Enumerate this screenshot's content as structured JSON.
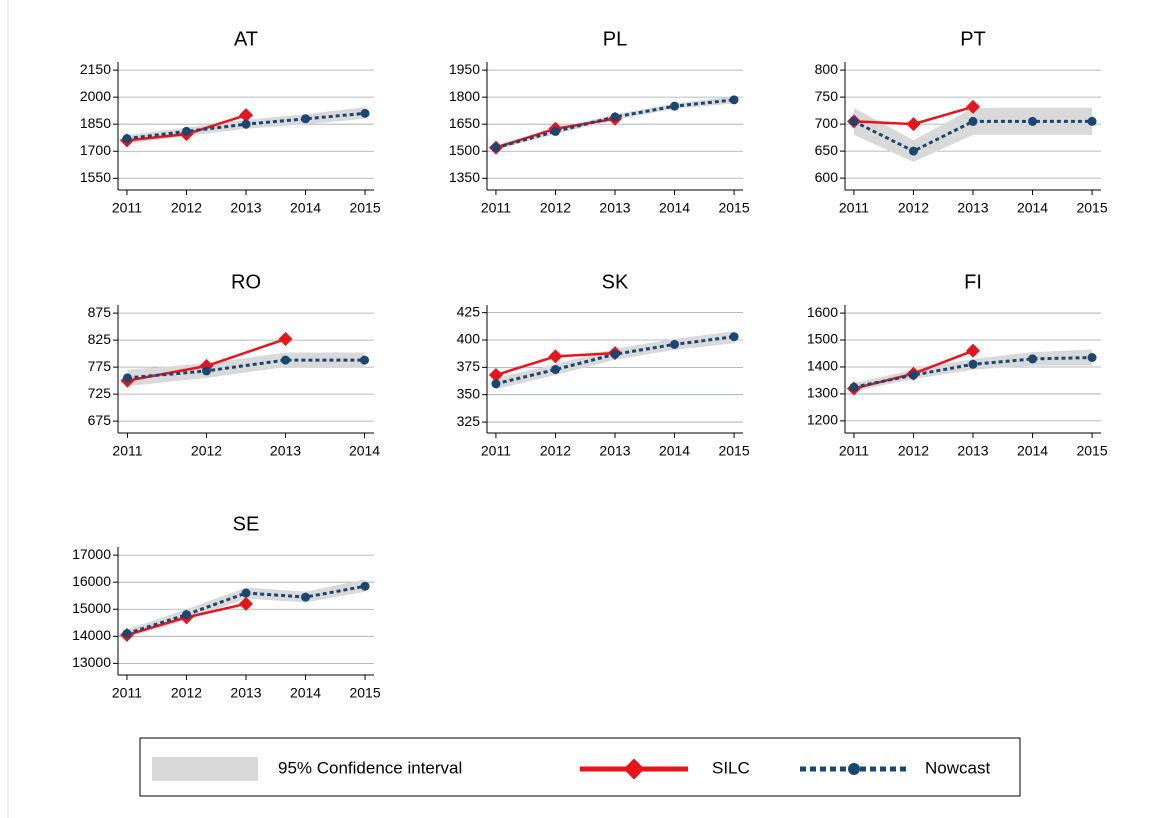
{
  "chart_data": [
    {
      "type": "line",
      "title": "AT",
      "x": [
        2011,
        2012,
        2013,
        2014,
        2015
      ],
      "xlim": [
        2010.85,
        2015.15
      ],
      "xticks": [
        2011,
        2012,
        2013,
        2014,
        2015
      ],
      "ylim": [
        1485,
        2195
      ],
      "yticks": [
        1550,
        1700,
        1850,
        2000,
        2150
      ],
      "grid": true,
      "series": [
        {
          "name": "95% Confidence interval",
          "lower": [
            1740,
            1785,
            1825,
            1850,
            1880
          ],
          "upper": [
            1790,
            1830,
            1875,
            1905,
            1945
          ]
        },
        {
          "name": "SILC",
          "values": [
            1760,
            1795,
            1900,
            null,
            null
          ]
        },
        {
          "name": "Nowcast",
          "values": [
            1770,
            1810,
            1850,
            1880,
            1910
          ]
        }
      ]
    },
    {
      "type": "line",
      "title": "PL",
      "x": [
        2011,
        2012,
        2013,
        2014,
        2015
      ],
      "xlim": [
        2010.85,
        2015.15
      ],
      "xticks": [
        2011,
        2012,
        2013,
        2014,
        2015
      ],
      "ylim": [
        1285,
        1995
      ],
      "yticks": [
        1350,
        1500,
        1650,
        1800,
        1950
      ],
      "grid": true,
      "series": [
        {
          "name": "95% Confidence interval",
          "lower": [
            1510,
            1595,
            1675,
            1735,
            1765
          ],
          "upper": [
            1535,
            1625,
            1705,
            1765,
            1805
          ]
        },
        {
          "name": "SILC",
          "values": [
            1520,
            1625,
            1680,
            null,
            null
          ]
        },
        {
          "name": "Nowcast",
          "values": [
            1520,
            1610,
            1690,
            1750,
            1785
          ]
        }
      ]
    },
    {
      "type": "line",
      "title": "PT",
      "x": [
        2011,
        2012,
        2013,
        2014,
        2015
      ],
      "xlim": [
        2010.85,
        2015.15
      ],
      "xticks": [
        2011,
        2012,
        2013,
        2014,
        2015
      ],
      "ylim": [
        578,
        815
      ],
      "yticks": [
        600,
        650,
        700,
        750,
        800
      ],
      "grid": true,
      "series": [
        {
          "name": "95% Confidence interval",
          "lower": [
            680,
            630,
            680,
            680,
            680
          ],
          "upper": [
            730,
            670,
            730,
            730,
            730
          ]
        },
        {
          "name": "SILC",
          "values": [
            705,
            700,
            732,
            null,
            null
          ]
        },
        {
          "name": "Nowcast",
          "values": [
            705,
            650,
            705,
            705,
            705
          ]
        }
      ]
    },
    {
      "type": "line",
      "title": "RO",
      "x": [
        2011,
        2012,
        2013,
        2014
      ],
      "xlim": [
        2010.88,
        2014.12
      ],
      "xticks": [
        2011,
        2012,
        2013,
        2014
      ],
      "ylim": [
        653,
        890
      ],
      "yticks": [
        675,
        725,
        775,
        825,
        875
      ],
      "grid": true,
      "series": [
        {
          "name": "95% Confidence interval",
          "lower": [
            740,
            755,
            775,
            775
          ],
          "upper": [
            770,
            782,
            802,
            802
          ]
        },
        {
          "name": "SILC",
          "values": [
            750,
            777,
            827,
            null
          ]
        },
        {
          "name": "Nowcast",
          "values": [
            755,
            768,
            788,
            788
          ]
        }
      ]
    },
    {
      "type": "line",
      "title": "SK",
      "x": [
        2011,
        2012,
        2013,
        2014,
        2015
      ],
      "xlim": [
        2010.85,
        2015.15
      ],
      "xticks": [
        2011,
        2012,
        2013,
        2014,
        2015
      ],
      "ylim": [
        315,
        432
      ],
      "yticks": [
        325,
        350,
        375,
        400,
        425
      ],
      "grid": true,
      "series": [
        {
          "name": "95% Confidence interval",
          "lower": [
            355,
            368,
            382,
            391,
            397
          ],
          "upper": [
            365,
            378,
            392,
            401,
            408
          ]
        },
        {
          "name": "SILC",
          "values": [
            368,
            385,
            388,
            null,
            null
          ]
        },
        {
          "name": "Nowcast",
          "values": [
            360,
            373,
            387,
            396,
            403
          ]
        }
      ]
    },
    {
      "type": "line",
      "title": "FI",
      "x": [
        2011,
        2012,
        2013,
        2014,
        2015
      ],
      "xlim": [
        2010.85,
        2015.15
      ],
      "xticks": [
        2011,
        2012,
        2013,
        2014,
        2015
      ],
      "ylim": [
        1155,
        1630
      ],
      "yticks": [
        1200,
        1300,
        1400,
        1500,
        1600
      ],
      "grid": true,
      "series": [
        {
          "name": "95% Confidence interval",
          "lower": [
            1310,
            1355,
            1390,
            1405,
            1405
          ],
          "upper": [
            1340,
            1390,
            1430,
            1455,
            1465
          ]
        },
        {
          "name": "SILC",
          "values": [
            1320,
            1375,
            1460,
            null,
            null
          ]
        },
        {
          "name": "Nowcast",
          "values": [
            1325,
            1370,
            1410,
            1430,
            1435
          ]
        }
      ]
    },
    {
      "type": "line",
      "title": "SE",
      "x": [
        2011,
        2012,
        2013,
        2014,
        2015
      ],
      "xlim": [
        2010.85,
        2015.15
      ],
      "xticks": [
        2011,
        2012,
        2013,
        2014,
        2015
      ],
      "ylim": [
        12570,
        17300
      ],
      "yticks": [
        13000,
        14000,
        15000,
        16000,
        17000
      ],
      "grid": true,
      "series": [
        {
          "name": "95% Confidence interval",
          "lower": [
            13950,
            14600,
            15400,
            15250,
            15650
          ],
          "upper": [
            14250,
            15000,
            15800,
            15650,
            16100
          ]
        },
        {
          "name": "SILC",
          "values": [
            14050,
            14700,
            15200,
            null,
            null
          ]
        },
        {
          "name": "Nowcast",
          "values": [
            14100,
            14800,
            15600,
            15450,
            15850
          ]
        }
      ]
    }
  ],
  "legend": {
    "entries": [
      {
        "name": "95% Confidence interval",
        "color": "#d9d9d9",
        "style": "band"
      },
      {
        "name": "SILC",
        "color": "#e8141b",
        "style": "solid",
        "marker": "diamond"
      },
      {
        "name": "Nowcast",
        "color": "#1a476f",
        "style": "dotted",
        "marker": "circle"
      }
    ]
  }
}
